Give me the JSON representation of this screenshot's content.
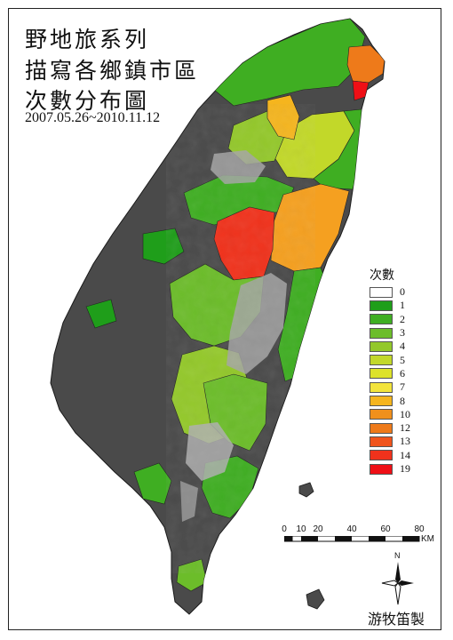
{
  "title": {
    "line1": "野地旅系列",
    "line2": "描寫各鄉鎮市區",
    "line3": "次數分布圖",
    "date_range": "2007.05.26~2010.11.12"
  },
  "legend": {
    "title": "次數",
    "items": [
      {
        "label": "0",
        "color": "#ffffff"
      },
      {
        "label": "1",
        "color": "#1f9e1a"
      },
      {
        "label": "2",
        "color": "#3fae22"
      },
      {
        "label": "3",
        "color": "#6cbd2a"
      },
      {
        "label": "4",
        "color": "#93c82a"
      },
      {
        "label": "5",
        "color": "#c2d829"
      },
      {
        "label": "6",
        "color": "#dde22a"
      },
      {
        "label": "7",
        "color": "#f3e43c"
      },
      {
        "label": "8",
        "color": "#f5b51e"
      },
      {
        "label": "10",
        "color": "#f0901c"
      },
      {
        "label": "12",
        "color": "#ee7a1a"
      },
      {
        "label": "13",
        "color": "#f0541c"
      },
      {
        "label": "14",
        "color": "#f0321c"
      },
      {
        "label": "19",
        "color": "#ef0f16"
      }
    ]
  },
  "scale_bar": {
    "ticks": [
      "0",
      "10",
      "20",
      "40",
      "60",
      "80"
    ],
    "unit": "KM"
  },
  "north_arrow": {
    "label": "N",
    "icon": "compass-rose-icon"
  },
  "author": "游牧笛製",
  "colors": {
    "unvisited": "#4a4a4a",
    "mountain_relief": "#9a9a9a",
    "frame": "#222222"
  }
}
